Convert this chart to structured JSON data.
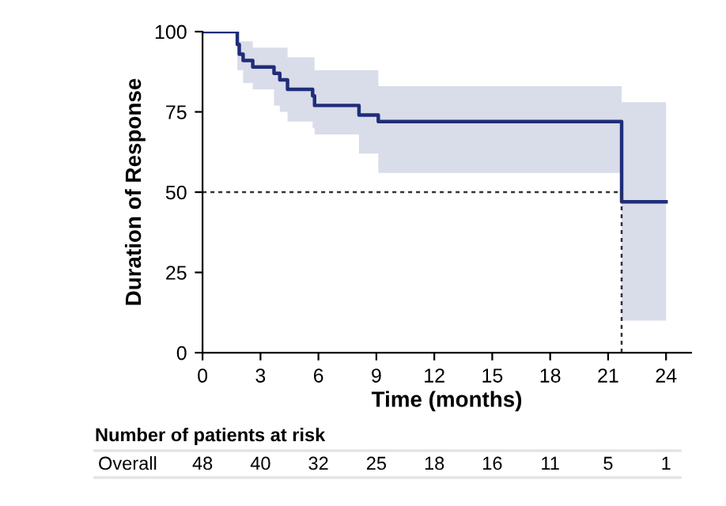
{
  "chart_data": {
    "type": "step",
    "xlabel": "Time (months)",
    "ylabel": "Duration of Response",
    "series": [
      {
        "color": "#1f2d7a",
        "x": [
          0,
          1.8,
          1.9,
          2.1,
          2.6,
          3.7,
          4.0,
          4.4,
          5.7,
          5.8,
          8.1,
          9.1,
          21.7,
          24
        ],
        "values": [
          100,
          96,
          93,
          91,
          89,
          87,
          85,
          82,
          80,
          77,
          74,
          72,
          47,
          47
        ],
        "upper": [
          100,
          97,
          97,
          97,
          95,
          95,
          95,
          92,
          92,
          88,
          88,
          83,
          78,
          78
        ],
        "lower": [
          100,
          88,
          88,
          84,
          82,
          77,
          75,
          72,
          70,
          68,
          62,
          56,
          10,
          10
        ]
      }
    ],
    "xlim": [
      0,
      25.3
    ],
    "ylim": [
      0,
      100
    ],
    "xticks": [
      0,
      3,
      6,
      9,
      12,
      15,
      18,
      21,
      24
    ],
    "yticks": [
      0,
      25,
      50,
      75,
      100
    ],
    "ref_lines": [
      {
        "axis": "y",
        "value": 50,
        "line_style": "dotted",
        "color": "#333333"
      },
      {
        "axis": "x",
        "value": 21.7,
        "line_style": "dotted",
        "color": "#333333"
      }
    ],
    "annotations": [
      "Number of patients at risk",
      "Overall",
      "48",
      "40",
      "32",
      "25",
      "18",
      "16",
      "11",
      "5",
      "1"
    ],
    "grid": false,
    "legend": false
  }
}
